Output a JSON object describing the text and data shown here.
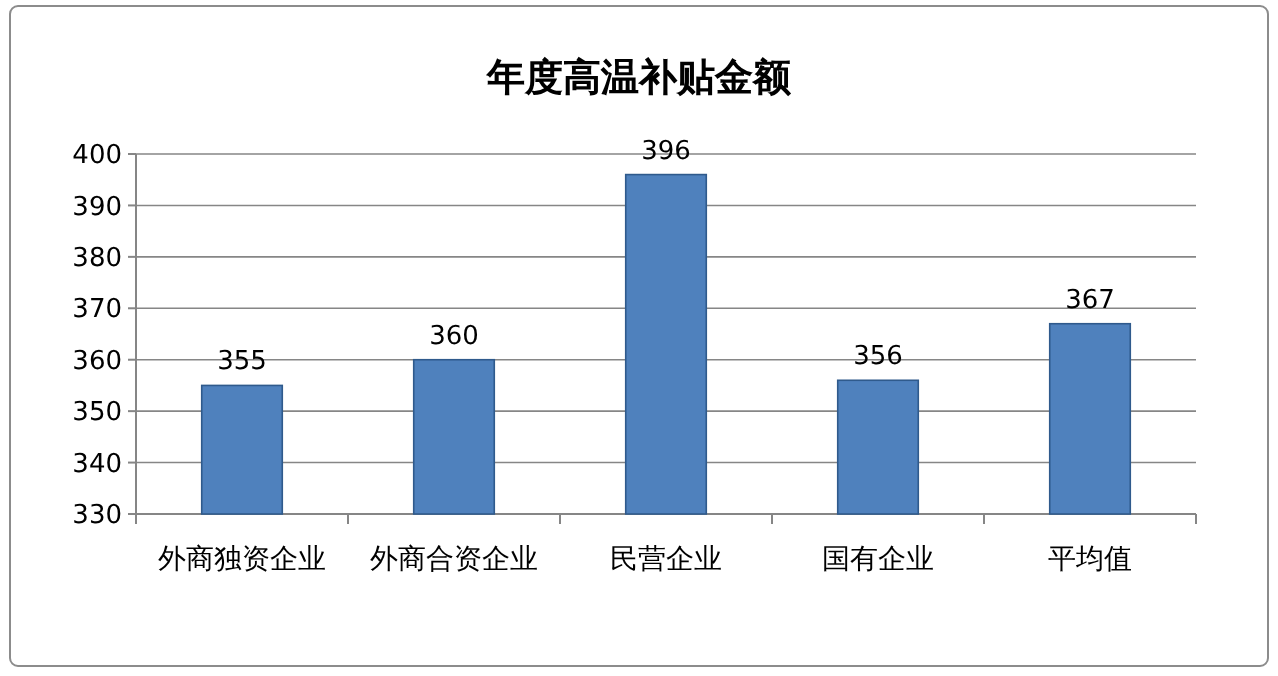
{
  "chart_data": {
    "type": "bar",
    "title": "年度高温补贴金额",
    "categories": [
      "外商独资企业",
      "外商合资企业",
      "民营企业",
      "国有企业",
      "平均值"
    ],
    "values": [
      355,
      360,
      396,
      356,
      367
    ],
    "color": "#4f81bd",
    "ylim": [
      330,
      400
    ],
    "yticks": [
      330,
      340,
      350,
      360,
      370,
      380,
      390,
      400
    ],
    "grid": "y",
    "data_labels": true
  }
}
